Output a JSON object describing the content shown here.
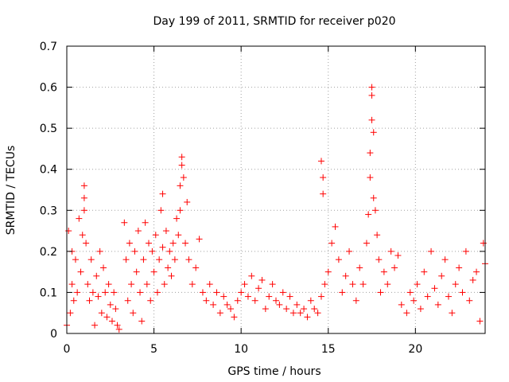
{
  "chart_data": {
    "type": "scatter",
    "title": "Day 199 of 2011, SRMTID for receiver p020",
    "xlabel": "GPS time / hours",
    "ylabel": "SRMTID / TECUs",
    "xlim": [
      0,
      24
    ],
    "ylim": [
      0,
      0.7
    ],
    "xticks": [
      0,
      5,
      10,
      15,
      20
    ],
    "xtick_labels": [
      "0",
      "5",
      "10",
      "15",
      "20"
    ],
    "yticks": [
      0,
      0.1,
      0.2,
      0.3,
      0.4,
      0.5,
      0.6,
      0.7
    ],
    "ytick_labels": [
      "0",
      "0.1",
      "0.2",
      "0.3",
      "0.4",
      "0.5",
      "0.6",
      "0.7"
    ],
    "grid": true,
    "marker": "+",
    "color": "#ff0000",
    "series": [
      {
        "name": "SRMTID",
        "x": [
          0.0,
          0.1,
          0.2,
          0.3,
          0.3,
          0.4,
          0.5,
          0.6,
          0.7,
          0.8,
          0.9,
          1.0,
          1.0,
          1.0,
          1.1,
          1.2,
          1.3,
          1.4,
          1.5,
          1.6,
          1.7,
          1.8,
          1.9,
          2.0,
          2.1,
          2.2,
          2.3,
          2.4,
          2.5,
          2.6,
          2.7,
          2.8,
          2.9,
          3.0,
          3.3,
          3.4,
          3.5,
          3.6,
          3.7,
          3.8,
          3.9,
          4.0,
          4.1,
          4.2,
          4.3,
          4.4,
          4.5,
          4.6,
          4.7,
          4.8,
          4.9,
          5.0,
          5.1,
          5.2,
          5.3,
          5.4,
          5.5,
          5.5,
          5.6,
          5.7,
          5.8,
          5.9,
          6.0,
          6.1,
          6.2,
          6.3,
          6.4,
          6.5,
          6.5,
          6.6,
          6.6,
          6.7,
          6.8,
          6.9,
          7.0,
          7.2,
          7.4,
          7.6,
          7.8,
          8.0,
          8.2,
          8.4,
          8.6,
          8.8,
          9.0,
          9.2,
          9.4,
          9.6,
          9.8,
          10.0,
          10.2,
          10.4,
          10.6,
          10.8,
          11.0,
          11.2,
          11.4,
          11.6,
          11.8,
          12.0,
          12.2,
          12.4,
          12.6,
          12.8,
          13.0,
          13.2,
          13.4,
          13.6,
          13.8,
          14.0,
          14.2,
          14.4,
          14.6,
          14.6,
          14.7,
          14.7,
          14.8,
          15.0,
          15.2,
          15.4,
          15.6,
          15.8,
          16.0,
          16.2,
          16.4,
          16.6,
          16.8,
          17.0,
          17.2,
          17.3,
          17.4,
          17.4,
          17.5,
          17.5,
          17.5,
          17.6,
          17.6,
          17.7,
          17.8,
          17.9,
          18.0,
          18.2,
          18.4,
          18.6,
          18.8,
          19.0,
          19.2,
          19.5,
          19.7,
          19.9,
          20.1,
          20.3,
          20.5,
          20.7,
          20.9,
          21.1,
          21.3,
          21.5,
          21.7,
          21.9,
          22.1,
          22.3,
          22.5,
          22.7,
          22.9,
          23.1,
          23.3,
          23.5,
          23.7,
          23.9,
          24.0
        ],
        "y": [
          0.02,
          0.25,
          0.05,
          0.12,
          0.2,
          0.08,
          0.18,
          0.1,
          0.28,
          0.15,
          0.24,
          0.36,
          0.33,
          0.3,
          0.22,
          0.12,
          0.08,
          0.18,
          0.1,
          0.02,
          0.14,
          0.09,
          0.2,
          0.05,
          0.16,
          0.1,
          0.04,
          0.12,
          0.07,
          0.03,
          0.1,
          0.06,
          0.02,
          0.01,
          0.27,
          0.18,
          0.08,
          0.22,
          0.12,
          0.05,
          0.2,
          0.15,
          0.25,
          0.1,
          0.03,
          0.18,
          0.27,
          0.12,
          0.22,
          0.08,
          0.2,
          0.15,
          0.24,
          0.1,
          0.18,
          0.3,
          0.34,
          0.21,
          0.12,
          0.25,
          0.16,
          0.2,
          0.14,
          0.22,
          0.18,
          0.28,
          0.24,
          0.36,
          0.3,
          0.43,
          0.41,
          0.38,
          0.22,
          0.32,
          0.18,
          0.12,
          0.16,
          0.23,
          0.1,
          0.08,
          0.12,
          0.07,
          0.1,
          0.05,
          0.09,
          0.07,
          0.06,
          0.04,
          0.08,
          0.1,
          0.12,
          0.09,
          0.14,
          0.08,
          0.11,
          0.13,
          0.06,
          0.09,
          0.12,
          0.08,
          0.07,
          0.1,
          0.06,
          0.09,
          0.05,
          0.07,
          0.05,
          0.06,
          0.04,
          0.08,
          0.06,
          0.05,
          0.09,
          0.42,
          0.38,
          0.34,
          0.12,
          0.15,
          0.22,
          0.26,
          0.18,
          0.1,
          0.14,
          0.2,
          0.12,
          0.08,
          0.16,
          0.12,
          0.22,
          0.29,
          0.38,
          0.44,
          0.6,
          0.58,
          0.52,
          0.49,
          0.33,
          0.3,
          0.24,
          0.18,
          0.1,
          0.15,
          0.12,
          0.2,
          0.16,
          0.19,
          0.07,
          0.05,
          0.1,
          0.08,
          0.12,
          0.06,
          0.15,
          0.09,
          0.2,
          0.11,
          0.07,
          0.14,
          0.18,
          0.09,
          0.05,
          0.12,
          0.16,
          0.1,
          0.2,
          0.08,
          0.13,
          0.15,
          0.03,
          0.22,
          0.17
        ]
      }
    ]
  }
}
